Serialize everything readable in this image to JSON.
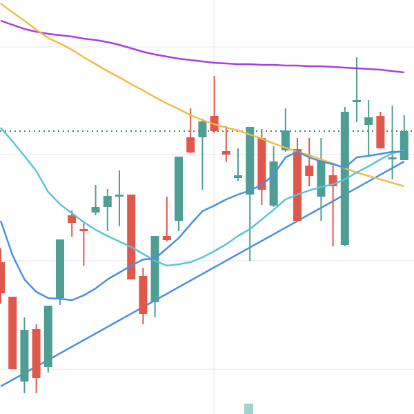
{
  "chart_data": {
    "type": "candlestick",
    "ylim": [
      0,
      600
    ],
    "yticks": [
      65,
      222,
      376,
      532
    ],
    "grid": true,
    "up_color": "#4f9e95",
    "down_color": "#e0574b",
    "open": [
      220,
      170,
      47,
      123,
      68,
      168,
      288,
      268,
      292,
      300,
      315,
      318,
      200,
      162,
      258,
      280,
      401,
      401,
      432,
      381,
      342,
      318,
      400,
      302,
      382,
      384,
      360,
      315,
      346,
      245,
      452,
      419,
      432,
      369,
      368
    ],
    "high": [
      240,
      170,
      140,
      130,
      157,
      253,
      295,
      280,
      332,
      326,
      353,
      318,
      212,
      258,
      315,
      373,
      443,
      428,
      490,
      417,
      385,
      416,
      413,
      388,
      443,
      400,
      400,
      400,
      360,
      445,
      517,
      455,
      438,
      447,
      433
    ],
    "low": [
      160,
      65,
      30,
      30,
      60,
      158,
      257,
      215,
      288,
      265,
      272,
      195,
      130,
      140,
      250,
      265,
      378,
      325,
      408,
      365,
      338,
      222,
      303,
      300,
      380,
      280,
      330,
      280,
      243,
      243,
      423,
      375,
      385,
      340,
      368
    ],
    "close": [
      175,
      65,
      122,
      52,
      157,
      253,
      277,
      265,
      300,
      316,
      318,
      195,
      145,
      258,
      252,
      373,
      379,
      424,
      410,
      376,
      346,
      416,
      325,
      366,
      411,
      280,
      345,
      368,
      330,
      438,
      455,
      430,
      385,
      372,
      410
    ],
    "series": [
      {
        "color": "#a63ee6",
        "values": [
          570,
          564,
          558,
          554,
          551,
          549,
          547,
          544,
          542,
          539,
          535,
          530,
          525,
          521,
          518,
          515,
          513,
          511,
          509,
          508,
          507,
          507,
          506,
          506,
          505,
          505,
          504,
          504,
          503,
          502,
          501,
          500,
          499,
          497,
          495
        ]
      },
      {
        "color": "#f0bc48",
        "values": [
          595,
          582,
          570,
          557,
          545,
          537,
          528,
          517,
          507,
          497,
          488,
          478,
          469,
          459,
          450,
          442,
          433,
          426,
          420,
          415,
          411,
          405,
          399,
          392,
          386,
          380,
          375,
          369,
          363,
          356,
          350,
          345,
          340,
          335,
          330
        ]
      },
      {
        "color": "#5bc4d9",
        "values": [
          415,
          395,
          374,
          352,
          322,
          304,
          291,
          278,
          267,
          258,
          250,
          242,
          232,
          222,
          215,
          217,
          220,
          227,
          236,
          246,
          258,
          268,
          282,
          296,
          311,
          318,
          324,
          329,
          333,
          340,
          350,
          359,
          369,
          378,
          382
        ]
      },
      {
        "color": "#4a8fe0",
        "values": [
          280,
          230,
          195,
          177,
          168,
          167,
          165,
          172,
          182,
          195,
          205,
          215,
          224,
          225,
          240,
          255,
          275,
          294,
          302,
          311,
          318,
          324,
          332,
          347,
          372,
          380,
          372,
          366,
          362,
          357,
          372,
          374,
          377,
          380,
          380
        ]
      }
    ],
    "trendline": {
      "color": "#4a8fe0",
      "x": [
        0,
        34
      ],
      "values": [
        40,
        366
      ]
    },
    "reference_line": {
      "color": "#2e8b74",
      "value": 410
    }
  }
}
